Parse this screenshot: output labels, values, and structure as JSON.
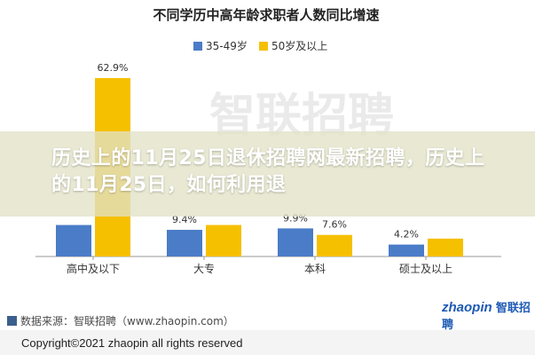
{
  "chart_data": {
    "type": "bar",
    "title": "不同学历中高年龄求职者人数同比增速",
    "categories": [
      "高中及以下",
      "大专",
      "本科",
      "硕士及以上"
    ],
    "series": [
      {
        "name": "35-49岁",
        "values": [
          11.1,
          9.4,
          9.9,
          4.2
        ]
      },
      {
        "name": "50岁及以上",
        "values": [
          62.9,
          11.1,
          7.6,
          6.3
        ]
      }
    ],
    "data_labels": [
      "62.9%",
      "11.1%",
      "9.9%",
      "7.6%",
      "4.2%"
    ],
    "ylim": [
      0,
      70
    ],
    "grid": false,
    "legend_position": "top"
  },
  "colors": {
    "series_a": "#4a7cc7",
    "series_b": "#f5c000",
    "axis": "#888888",
    "text": "#333333"
  },
  "watermark": "智联招聘",
  "headline": "历史上的11月25日退休招聘网最新招聘，历史上的11月25日，如何利用退",
  "source": "数据来源：智联招聘（www.zhaopin.com）",
  "copyright": "Copyright©2021 zhaopin all rights reserved",
  "logo": {
    "latin": "zhaopin",
    "cn": "智联招聘"
  }
}
